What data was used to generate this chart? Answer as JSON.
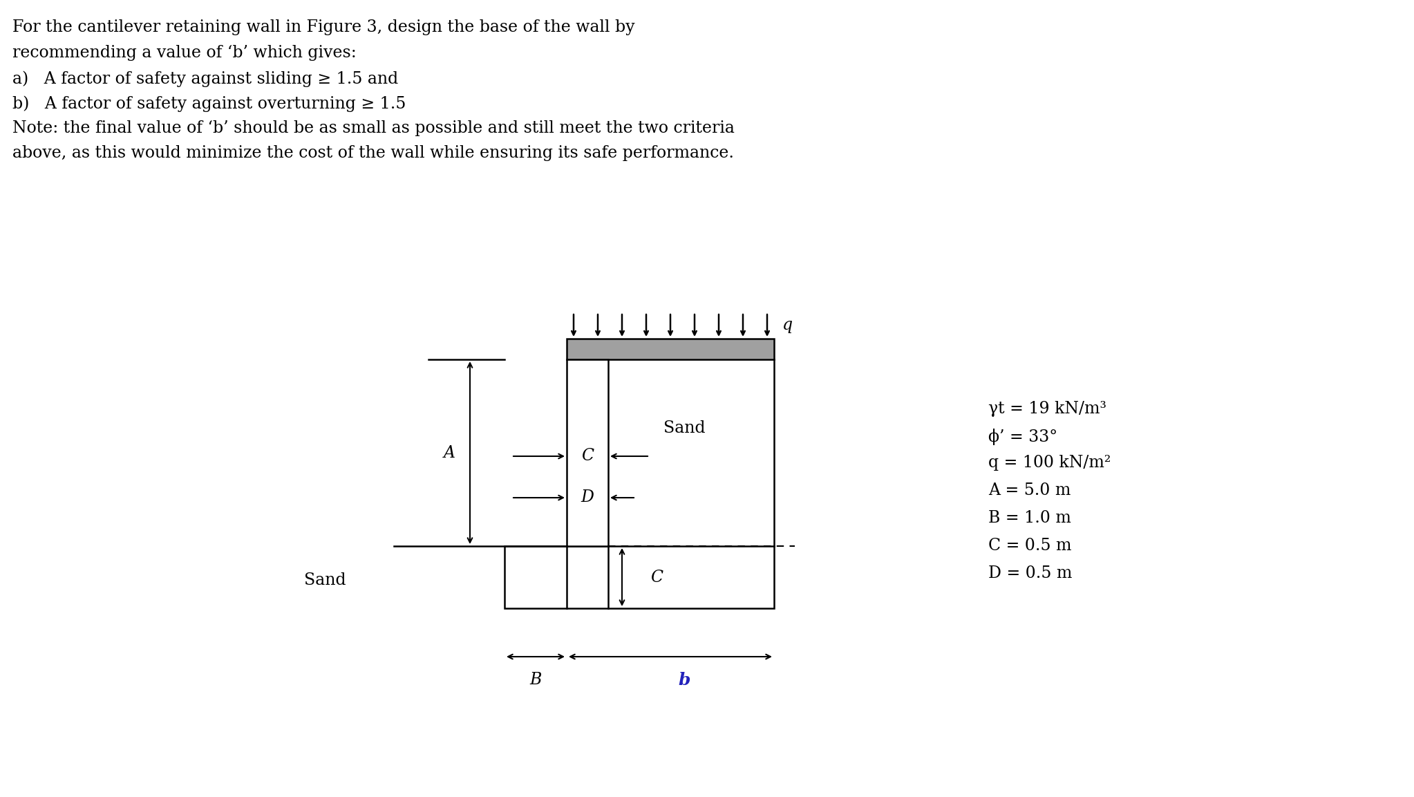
{
  "text_lines": [
    "For the cantilever retaining wall in Figure 3, design the base of the wall by",
    "recommending a value of ‘b’ which gives:",
    "a)   A factor of safety against sliding ≥ 1.5 and",
    "b)   A factor of safety against overturning ≥ 1.5",
    "Note: the final value of ‘b’ should be as small as possible and still meet the two criteria",
    "above, as this would minimize the cost of the wall while ensuring its safe performance."
  ],
  "params": [
    "γt = 19 kN/m³",
    "ϕ’ = 33°",
    "q = 100 kN/m²",
    "A = 5.0 m",
    "B = 1.0 m",
    "C = 0.5 m",
    "D = 0.5 m"
  ],
  "bg_color": "#ffffff",
  "text_color": "#000000",
  "line_color": "#000000"
}
